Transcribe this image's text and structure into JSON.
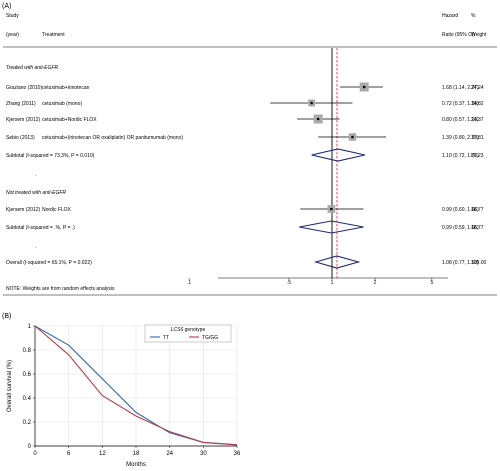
{
  "panel_a": {
    "label": "(A)",
    "headers": {
      "study": "Study",
      "year": "(year)",
      "treatment": "Treatment",
      "hazard": "Hazard",
      "ratio_ci": "Ratio (95% CI)",
      "pct": "%",
      "weight": "Weight"
    },
    "note": "NOTE: Weights are from random effects analysis",
    "dot": "."
  },
  "panel_b": {
    "label": "(B)",
    "legend_title_italic": "LCS6",
    "legend_title_rest": " genotype"
  },
  "chart_data": [
    {
      "type": "forest",
      "ylabel": "",
      "x_scale": "log",
      "xlim": [
        0.1,
        5
      ],
      "x_ticks": [
        ".1",
        ".5",
        "1",
        "2",
        "5"
      ],
      "reference_line": 1,
      "pooled_line": 1.08,
      "groups": [
        {
          "title": "Treated with anti-EGFR",
          "studies": [
            {
              "study": "Graziano (2010)",
              "treatment": "cetuximab+irinotecan",
              "hr": 1.68,
              "lo": 1.14,
              "hi": 2.27,
              "ci_text": "1.68 (1.14, 2.27)",
              "weight": "24.24"
            },
            {
              "study": "Zhang (2011)",
              "treatment": "cetuximab (mono)",
              "hr": 0.72,
              "lo": 0.37,
              "hi": 1.39,
              "ci_text": "0.72 (0.37, 1.39)",
              "weight": "14.82"
            },
            {
              "study": "Kjersem (2012)",
              "treatment": "cetuximab+Nordic FLOX",
              "hr": 0.8,
              "lo": 0.57,
              "hi": 1.13,
              "ci_text": "0.80 (0.57, 1.13)",
              "weight": "24.37"
            },
            {
              "study": "Sebio (2013)",
              "treatment": "cetuximab+(irinotecan OR oxaliplatin) OR panitumumab (mono)",
              "hr": 1.39,
              "lo": 0.8,
              "hi": 2.39,
              "ci_text": "1.39 (0.80, 2.39)",
              "weight": "17.81"
            }
          ],
          "subtotal": {
            "label": "Subtotal  (I-squared = 73.3%, P = 0.010)",
            "hr": 1.1,
            "lo": 0.72,
            "hi": 1.7,
            "ci_text": "1.10 (0.72, 1.70)",
            "weight": "81.23"
          }
        },
        {
          "title": "Not treated with anti-EGFR",
          "studies": [
            {
              "study": "Kjersem (2012)",
              "treatment": "Nordic FLOX",
              "hr": 0.99,
              "lo": 0.6,
              "hi": 1.66,
              "ci_text": "0.99 (0.60, 1.66)",
              "weight": "18.77"
            }
          ],
          "subtotal": {
            "label": "Subtotal  (I-squared = .%, P = .)",
            "hr": 0.99,
            "lo": 0.59,
            "hi": 1.66,
            "ci_text": "0.99 (0.59, 1.66)",
            "weight": "18.77"
          }
        }
      ],
      "overall": {
        "label": "Overall  (I-squared = 65.1%, P = 0.022)",
        "hr": 1.08,
        "lo": 0.77,
        "hi": 1.53,
        "ci_text": "1.08 (0.77, 1.53)",
        "weight": "100.00"
      }
    },
    {
      "type": "line",
      "xlabel": "Months",
      "ylabel": "Overall survival (%)",
      "xlim": [
        0,
        36
      ],
      "ylim": [
        0,
        1
      ],
      "x_ticks": [
        0,
        6,
        12,
        18,
        24,
        30,
        36
      ],
      "y_ticks": [
        0,
        0.2,
        0.4,
        0.6,
        0.8,
        1
      ],
      "grid": true,
      "legend_position": "top-center",
      "x": [
        0,
        6,
        12,
        18,
        24,
        30,
        36
      ],
      "series": [
        {
          "name": "TT",
          "color": "#3a6aa8",
          "values": [
            1.0,
            0.84,
            0.56,
            0.28,
            0.11,
            0.03,
            0.01
          ]
        },
        {
          "name": "TG/GG",
          "color": "#a8434a",
          "values": [
            1.0,
            0.76,
            0.42,
            0.25,
            0.12,
            0.03,
            0.01
          ]
        }
      ]
    }
  ]
}
